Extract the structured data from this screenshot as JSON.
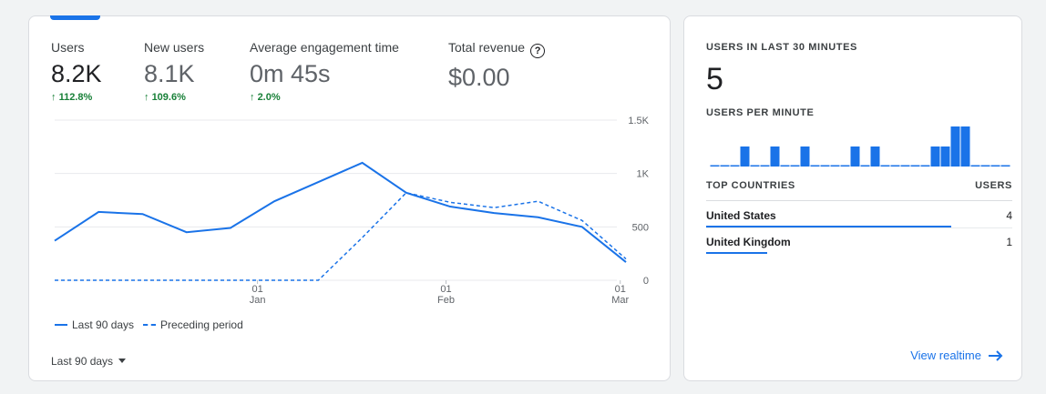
{
  "overview": {
    "metrics": [
      {
        "label": "Users",
        "value": "8.2K",
        "change": "112.8%"
      },
      {
        "label": "New users",
        "value": "8.1K",
        "change": "109.6%"
      },
      {
        "label": "Average engagement time",
        "value": "0m 45s",
        "change": "2.0%"
      },
      {
        "label": "Total revenue",
        "value": "$0.00",
        "change": ""
      }
    ],
    "change_color": "#188038",
    "accent_color": "#1a73e8",
    "range_selector": "Last 90 days",
    "arrow_glyph": "↑"
  },
  "chart_data": {
    "type": "line",
    "x": [
      "Dec 03",
      "Dec 08",
      "Dec 16",
      "Dec 24",
      "Dec 31",
      "Jan 08",
      "Jan 16",
      "Jan 24",
      "Jan 30",
      "Feb 07",
      "Feb 13",
      "Feb 20",
      "Feb 26",
      "Mar 01"
    ],
    "series": [
      {
        "name": "Last 90 days",
        "style": "solid",
        "values": [
          370,
          640,
          620,
          450,
          490,
          740,
          920,
          1100,
          820,
          690,
          630,
          590,
          500,
          170
        ]
      },
      {
        "name": "Preceding period",
        "style": "dashed",
        "values": [
          0,
          0,
          0,
          0,
          0,
          0,
          0,
          400,
          820,
          730,
          680,
          740,
          560,
          200
        ]
      }
    ],
    "y_ticks": [
      "0",
      "500",
      "1K",
      "1.5K"
    ],
    "ylim": [
      0,
      1500
    ],
    "x_tick_labels": [
      {
        "day": "01",
        "month": "Jan"
      },
      {
        "day": "01",
        "month": "Feb"
      },
      {
        "day": "01",
        "month": "Mar"
      }
    ],
    "grid": true,
    "legend_position": "bottom-left"
  },
  "realtime": {
    "heading": "USERS IN LAST 30 MINUTES",
    "count": "5",
    "per_minute_heading": "USERS PER MINUTE",
    "per_minute_values": [
      0,
      0,
      0,
      1,
      0,
      0,
      1,
      0,
      0,
      1,
      0,
      0,
      0,
      0,
      1,
      0,
      1,
      0,
      0,
      0,
      0,
      0,
      1,
      1,
      2,
      2,
      0,
      0,
      0,
      0
    ],
    "countries_heading": "TOP COUNTRIES",
    "users_heading": "USERS",
    "countries": [
      {
        "name": "United States",
        "users": "4",
        "share": 0.8
      },
      {
        "name": "United Kingdom",
        "users": "1",
        "share": 0.2
      }
    ],
    "view_link": "View realtime"
  }
}
